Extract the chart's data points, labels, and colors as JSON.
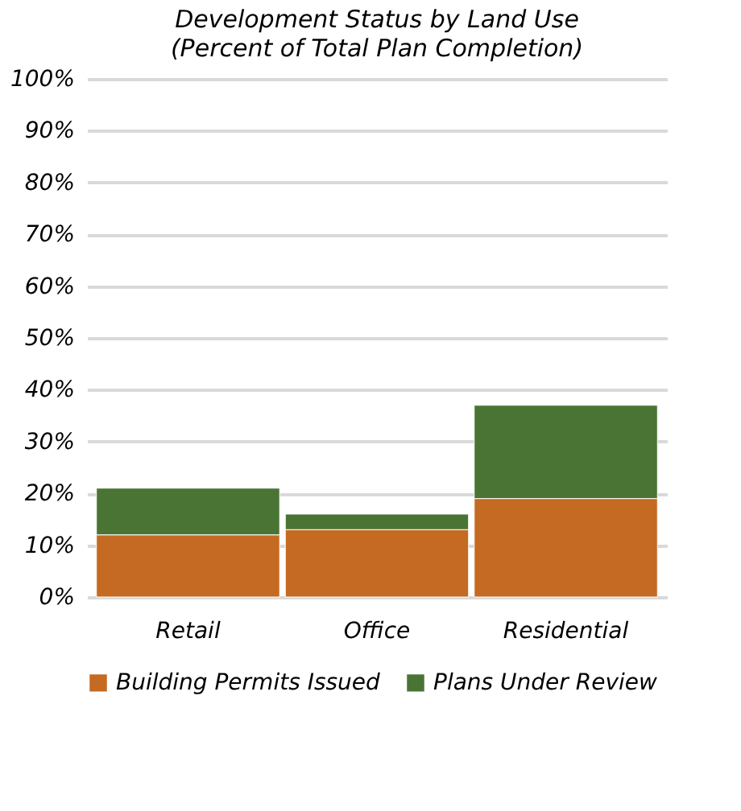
{
  "chart_data": {
    "type": "bar",
    "title": "Development Status by Land Use",
    "subtitle": "(Percent of Total Plan Completion)",
    "categories": [
      "Retail",
      "Office",
      "Residential"
    ],
    "stacked": true,
    "series": [
      {
        "name": "Building Permits Issued",
        "color": "#c56a22",
        "values": [
          12,
          13,
          19
        ]
      },
      {
        "name": "Plans Under Review",
        "color": "#4a7433",
        "values": [
          9,
          3,
          18
        ]
      }
    ],
    "ylim": [
      0,
      100
    ],
    "yticks": [
      {
        "value": 0,
        "label": "0%"
      },
      {
        "value": 10,
        "label": "10%"
      },
      {
        "value": 20,
        "label": "20%"
      },
      {
        "value": 30,
        "label": "30%"
      },
      {
        "value": 40,
        "label": "40%"
      },
      {
        "value": 50,
        "label": "50%"
      },
      {
        "value": 60,
        "label": "60%"
      },
      {
        "value": 70,
        "label": "70%"
      },
      {
        "value": 80,
        "label": "80%"
      },
      {
        "value": 90,
        "label": "90%"
      },
      {
        "value": 100,
        "label": "100%"
      }
    ],
    "grid": "y",
    "legend": "bottom"
  }
}
